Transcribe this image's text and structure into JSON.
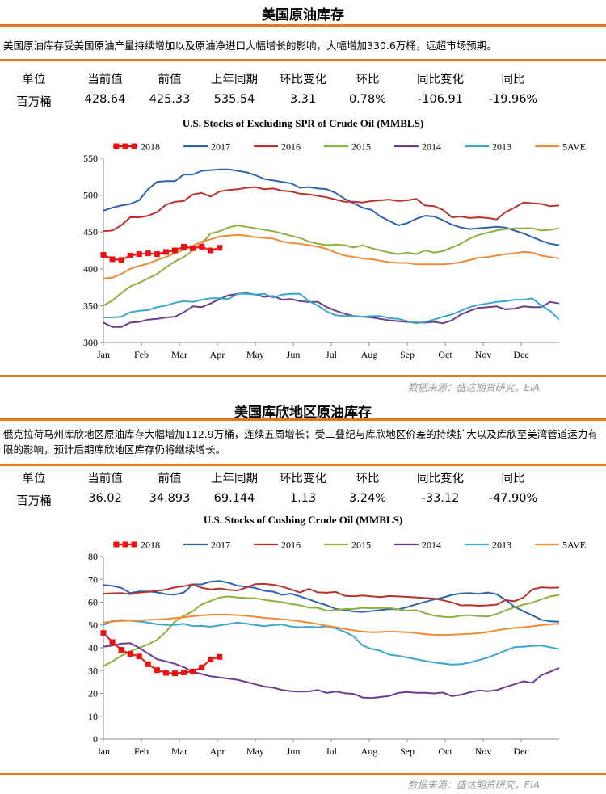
{
  "sections": [
    {
      "title": "美国原油库存",
      "description": "美国原油库存受美国原油产量持续增加以及原油净进口大幅增长的影响，大幅增加330.6万桶，远超市场预期。",
      "table": {
        "headers": [
          "单位",
          "当前值",
          "前值",
          "上年同期",
          "环比变化",
          "环比",
          "同比变化",
          "同比"
        ],
        "values": [
          "百万桶",
          "428.64",
          "425.33",
          "535.54",
          "3.31",
          "0.78%",
          "-106.91",
          "-19.96%"
        ]
      },
      "source": "数据来源：盛达期货研究，EIA"
    },
    {
      "title": "美国库欣地区原油库存",
      "description": "俄克拉荷马州库欣地区原油库存大幅增加112.9万桶，连续五周增长；受二叠纪与库欣地区价差的持续扩大以及库欣至美湾管道运力有限的影响，预计后期库欣地区库存仍将继续增长。",
      "table": {
        "headers": [
          "单位",
          "当前值",
          "前值",
          "上年同期",
          "环比变化",
          "环比",
          "同比变化",
          "同比"
        ],
        "values": [
          "百万桶",
          "36.02",
          "34.893",
          "69.144",
          "1.13",
          "3.24%",
          "-33.12",
          "-47.90%"
        ]
      },
      "source": "数据来源：盛达期货研究，EIA"
    }
  ],
  "chart_data": [
    {
      "type": "line",
      "title": "U.S.  Stocks of Excluding SPR of Crude Oil (MMBLS)",
      "x_ticks": [
        "Jan",
        "Feb",
        "Mar",
        "Apr",
        "May",
        "Jun",
        "Jul",
        "Aug",
        "Sep",
        "Oct",
        "Nov",
        "Dec"
      ],
      "ylim": [
        300,
        550
      ],
      "y_ticks": [
        300,
        350,
        400,
        450,
        500,
        550
      ],
      "grid": false,
      "legend": "top",
      "weeks": 52,
      "series": [
        {
          "name": "2018",
          "color": "#ee1111",
          "marker": "square",
          "values": [
            419,
            413,
            412,
            418,
            420,
            421,
            420,
            423,
            425,
            430,
            428,
            430,
            425,
            428.6
          ]
        },
        {
          "name": "2017",
          "color": "#2e64ad",
          "values": [
            479,
            483,
            486,
            488,
            493,
            508,
            518,
            519,
            519,
            528,
            528,
            533,
            534,
            535,
            535,
            533,
            531,
            527,
            522,
            520,
            518,
            516,
            510,
            511,
            509,
            508,
            503,
            495,
            489,
            483,
            480,
            471,
            465,
            459,
            462,
            468,
            472,
            471,
            466,
            460,
            456,
            454,
            455,
            456,
            457,
            456,
            452,
            448,
            443,
            438,
            434,
            432
          ]
        },
        {
          "name": "2016",
          "color": "#b8332e",
          "values": [
            451,
            452,
            459,
            470,
            470,
            472,
            477,
            487,
            491,
            492,
            501,
            503,
            498,
            505,
            507,
            508,
            510,
            511,
            508,
            509,
            506,
            505,
            502,
            501,
            499,
            497,
            494,
            491,
            491,
            490,
            492,
            493,
            494,
            492,
            493,
            495,
            486,
            485,
            480,
            470,
            471,
            469,
            470,
            469,
            467,
            477,
            483,
            490,
            489,
            488,
            485,
            486
          ]
        },
        {
          "name": "2015",
          "color": "#8db13f",
          "values": [
            350,
            357,
            367,
            376,
            381,
            387,
            393,
            402,
            410,
            416,
            425,
            434,
            448,
            451,
            456,
            459,
            457,
            455,
            453,
            451,
            448,
            445,
            442,
            437,
            434,
            432,
            433,
            432,
            429,
            432,
            428,
            425,
            422,
            420,
            422,
            420,
            425,
            422,
            424,
            429,
            434,
            441,
            446,
            449,
            452,
            454,
            455,
            455,
            455,
            452,
            453,
            455
          ]
        },
        {
          "name": "2014",
          "color": "#6a3d8f",
          "values": [
            327,
            321,
            321,
            327,
            328,
            331,
            332,
            334,
            335,
            341,
            349,
            348,
            353,
            359,
            364,
            366,
            367,
            365,
            362,
            363,
            358,
            359,
            356,
            355,
            355,
            348,
            343,
            339,
            336,
            335,
            334,
            332,
            330,
            329,
            328,
            327,
            327,
            328,
            326,
            330,
            338,
            343,
            347,
            348,
            349,
            345,
            346,
            349,
            348,
            348,
            355,
            353
          ]
        },
        {
          "name": "2013",
          "color": "#3aa8c8",
          "values": [
            334,
            334,
            335,
            341,
            343,
            344,
            348,
            350,
            354,
            356,
            355,
            358,
            360,
            360,
            359,
            366,
            366,
            365,
            366,
            361,
            365,
            366,
            366,
            356,
            350,
            342,
            337,
            336,
            336,
            335,
            336,
            336,
            333,
            332,
            329,
            326,
            328,
            331,
            335,
            338,
            343,
            348,
            351,
            353,
            355,
            356,
            358,
            358,
            360,
            350,
            343,
            331
          ]
        },
        {
          "name": "5AVE",
          "color": "#f08a33",
          "values": [
            387,
            388,
            393,
            400,
            404,
            407,
            412,
            416,
            421,
            426,
            431,
            437,
            440,
            444,
            445,
            446,
            445,
            443,
            442,
            441,
            437,
            435,
            434,
            432,
            430,
            427,
            422,
            418,
            416,
            414,
            413,
            411,
            409,
            408,
            408,
            406,
            406,
            406,
            406,
            407,
            409,
            412,
            415,
            416,
            418,
            420,
            421,
            423,
            422,
            418,
            416,
            414
          ]
        }
      ]
    },
    {
      "type": "line",
      "title": "U.S.  Stocks of Cushing  Crude Oil (MMBLS)",
      "x_ticks": [
        "Jan",
        "Feb",
        "Mar",
        "Apr",
        "May",
        "Jun",
        "Jul",
        "Aug",
        "Sep",
        "Oct",
        "Nov",
        "Dec"
      ],
      "ylim": [
        0,
        80
      ],
      "y_ticks": [
        0,
        10,
        20,
        30,
        40,
        50,
        60,
        70,
        80
      ],
      "grid": false,
      "legend": "top",
      "weeks": 52,
      "series": [
        {
          "name": "2018",
          "color": "#ee1111",
          "marker": "square",
          "values": [
            46.5,
            42.5,
            39.1,
            37.3,
            36.2,
            32.8,
            30.2,
            29.0,
            28.8,
            29.2,
            29.6,
            31.4,
            34.9,
            36.0
          ]
        },
        {
          "name": "2017",
          "color": "#2e64ad",
          "values": [
            67.5,
            67.1,
            66.3,
            64.0,
            64.7,
            64.7,
            64.3,
            63.5,
            63.3,
            64.2,
            67.8,
            67.8,
            69.0,
            69.3,
            68.5,
            67.2,
            66.8,
            66.2,
            65.0,
            64.6,
            63.2,
            63.7,
            62.5,
            61.2,
            59.8,
            58.6,
            57.0,
            56.6,
            55.9,
            55.7,
            56.1,
            56.5,
            57.0,
            56.8,
            57.8,
            59.0,
            60.1,
            61.2,
            62.0,
            63.2,
            63.8,
            64.0,
            63.6,
            64.2,
            63.5,
            61.0,
            58.0,
            56.0,
            54.2,
            52.3,
            51.6,
            51.4
          ]
        },
        {
          "name": "2016",
          "color": "#b8332e",
          "values": [
            63.7,
            63.9,
            64.0,
            63.5,
            64.2,
            64.5,
            65.0,
            65.5,
            66.5,
            67.0,
            67.8,
            66.3,
            65.6,
            66.0,
            65.4,
            65.1,
            66.4,
            67.9,
            68.0,
            67.6,
            66.8,
            65.6,
            64.2,
            65.8,
            64.3,
            64.1,
            64.5,
            62.8,
            62.6,
            62.9,
            62.6,
            62.2,
            62.7,
            62.5,
            62.3,
            62.1,
            61.8,
            61.6,
            60.8,
            59.9,
            58.6,
            58.7,
            58.4,
            58.6,
            58.9,
            60.9,
            60.4,
            62.0,
            65.6,
            66.5,
            66.3,
            66.4
          ]
        },
        {
          "name": "2015",
          "color": "#8db13f",
          "values": [
            32.0,
            34.0,
            36.5,
            38.5,
            40.0,
            41.5,
            43.5,
            47.0,
            51.5,
            54.0,
            56.0,
            59.0,
            60.5,
            62.0,
            62.5,
            62.0,
            61.8,
            61.7,
            61.0,
            60.5,
            60.0,
            59.2,
            58.6,
            57.6,
            57.5,
            56.2,
            56.5,
            57.0,
            57.0,
            57.5,
            57.3,
            57.4,
            57.5,
            56.8,
            56.3,
            56.5,
            55.2,
            54.1,
            53.6,
            53.4,
            54.1,
            54.3,
            53.9,
            53.7,
            54.8,
            56.4,
            57.7,
            58.9,
            59.8,
            61.2,
            62.5,
            63.1
          ]
        },
        {
          "name": "2014",
          "color": "#6a3d8f",
          "values": [
            40.5,
            41.0,
            41.8,
            42.0,
            40.0,
            37.5,
            35.0,
            34.0,
            33.0,
            31.5,
            29.5,
            28.5,
            27.5,
            27.0,
            26.5,
            26.0,
            25.0,
            24.0,
            23.0,
            22.5,
            21.5,
            21.0,
            20.8,
            20.9,
            21.5,
            20.2,
            20.8,
            20.1,
            19.8,
            18.2,
            18.0,
            18.4,
            18.9,
            20.2,
            20.6,
            20.3,
            20.3,
            20.0,
            20.4,
            18.8,
            19.4,
            20.5,
            21.3,
            21.0,
            21.4,
            22.8,
            24.0,
            25.3,
            24.6,
            28.0,
            29.5,
            31.2
          ]
        },
        {
          "name": "2013",
          "color": "#3aa8c8",
          "values": [
            50.0,
            51.8,
            52.2,
            51.9,
            51.5,
            51.0,
            50.3,
            50.0,
            50.0,
            50.5,
            49.5,
            49.6,
            49.2,
            49.8,
            50.4,
            51.0,
            50.5,
            50.0,
            49.4,
            50.0,
            50.2,
            49.3,
            49.0,
            49.2,
            49.0,
            49.4,
            48.5,
            47.0,
            45.0,
            41.0,
            39.5,
            38.7,
            37.0,
            36.5,
            35.7,
            35.0,
            34.2,
            33.6,
            33.1,
            32.6,
            32.8,
            33.5,
            34.6,
            35.7,
            37.2,
            38.8,
            40.3,
            40.5,
            40.8,
            41.0,
            40.2,
            39.4
          ]
        },
        {
          "name": "5AVE",
          "color": "#f08a33",
          "values": [
            51.0,
            51.5,
            51.7,
            51.9,
            52.0,
            52.2,
            52.4,
            52.6,
            53.0,
            53.4,
            53.8,
            54.2,
            54.5,
            54.6,
            54.5,
            54.3,
            54.0,
            53.6,
            53.1,
            52.8,
            52.5,
            52.1,
            51.6,
            51.0,
            50.4,
            49.6,
            49.0,
            48.3,
            47.6,
            47.1,
            46.8,
            46.9,
            47.1,
            47.0,
            46.8,
            46.5,
            46.0,
            45.7,
            45.6,
            45.7,
            45.9,
            46.1,
            46.4,
            46.9,
            47.6,
            48.2,
            48.7,
            49.0,
            49.4,
            49.9,
            50.3,
            50.5
          ]
        }
      ]
    }
  ]
}
